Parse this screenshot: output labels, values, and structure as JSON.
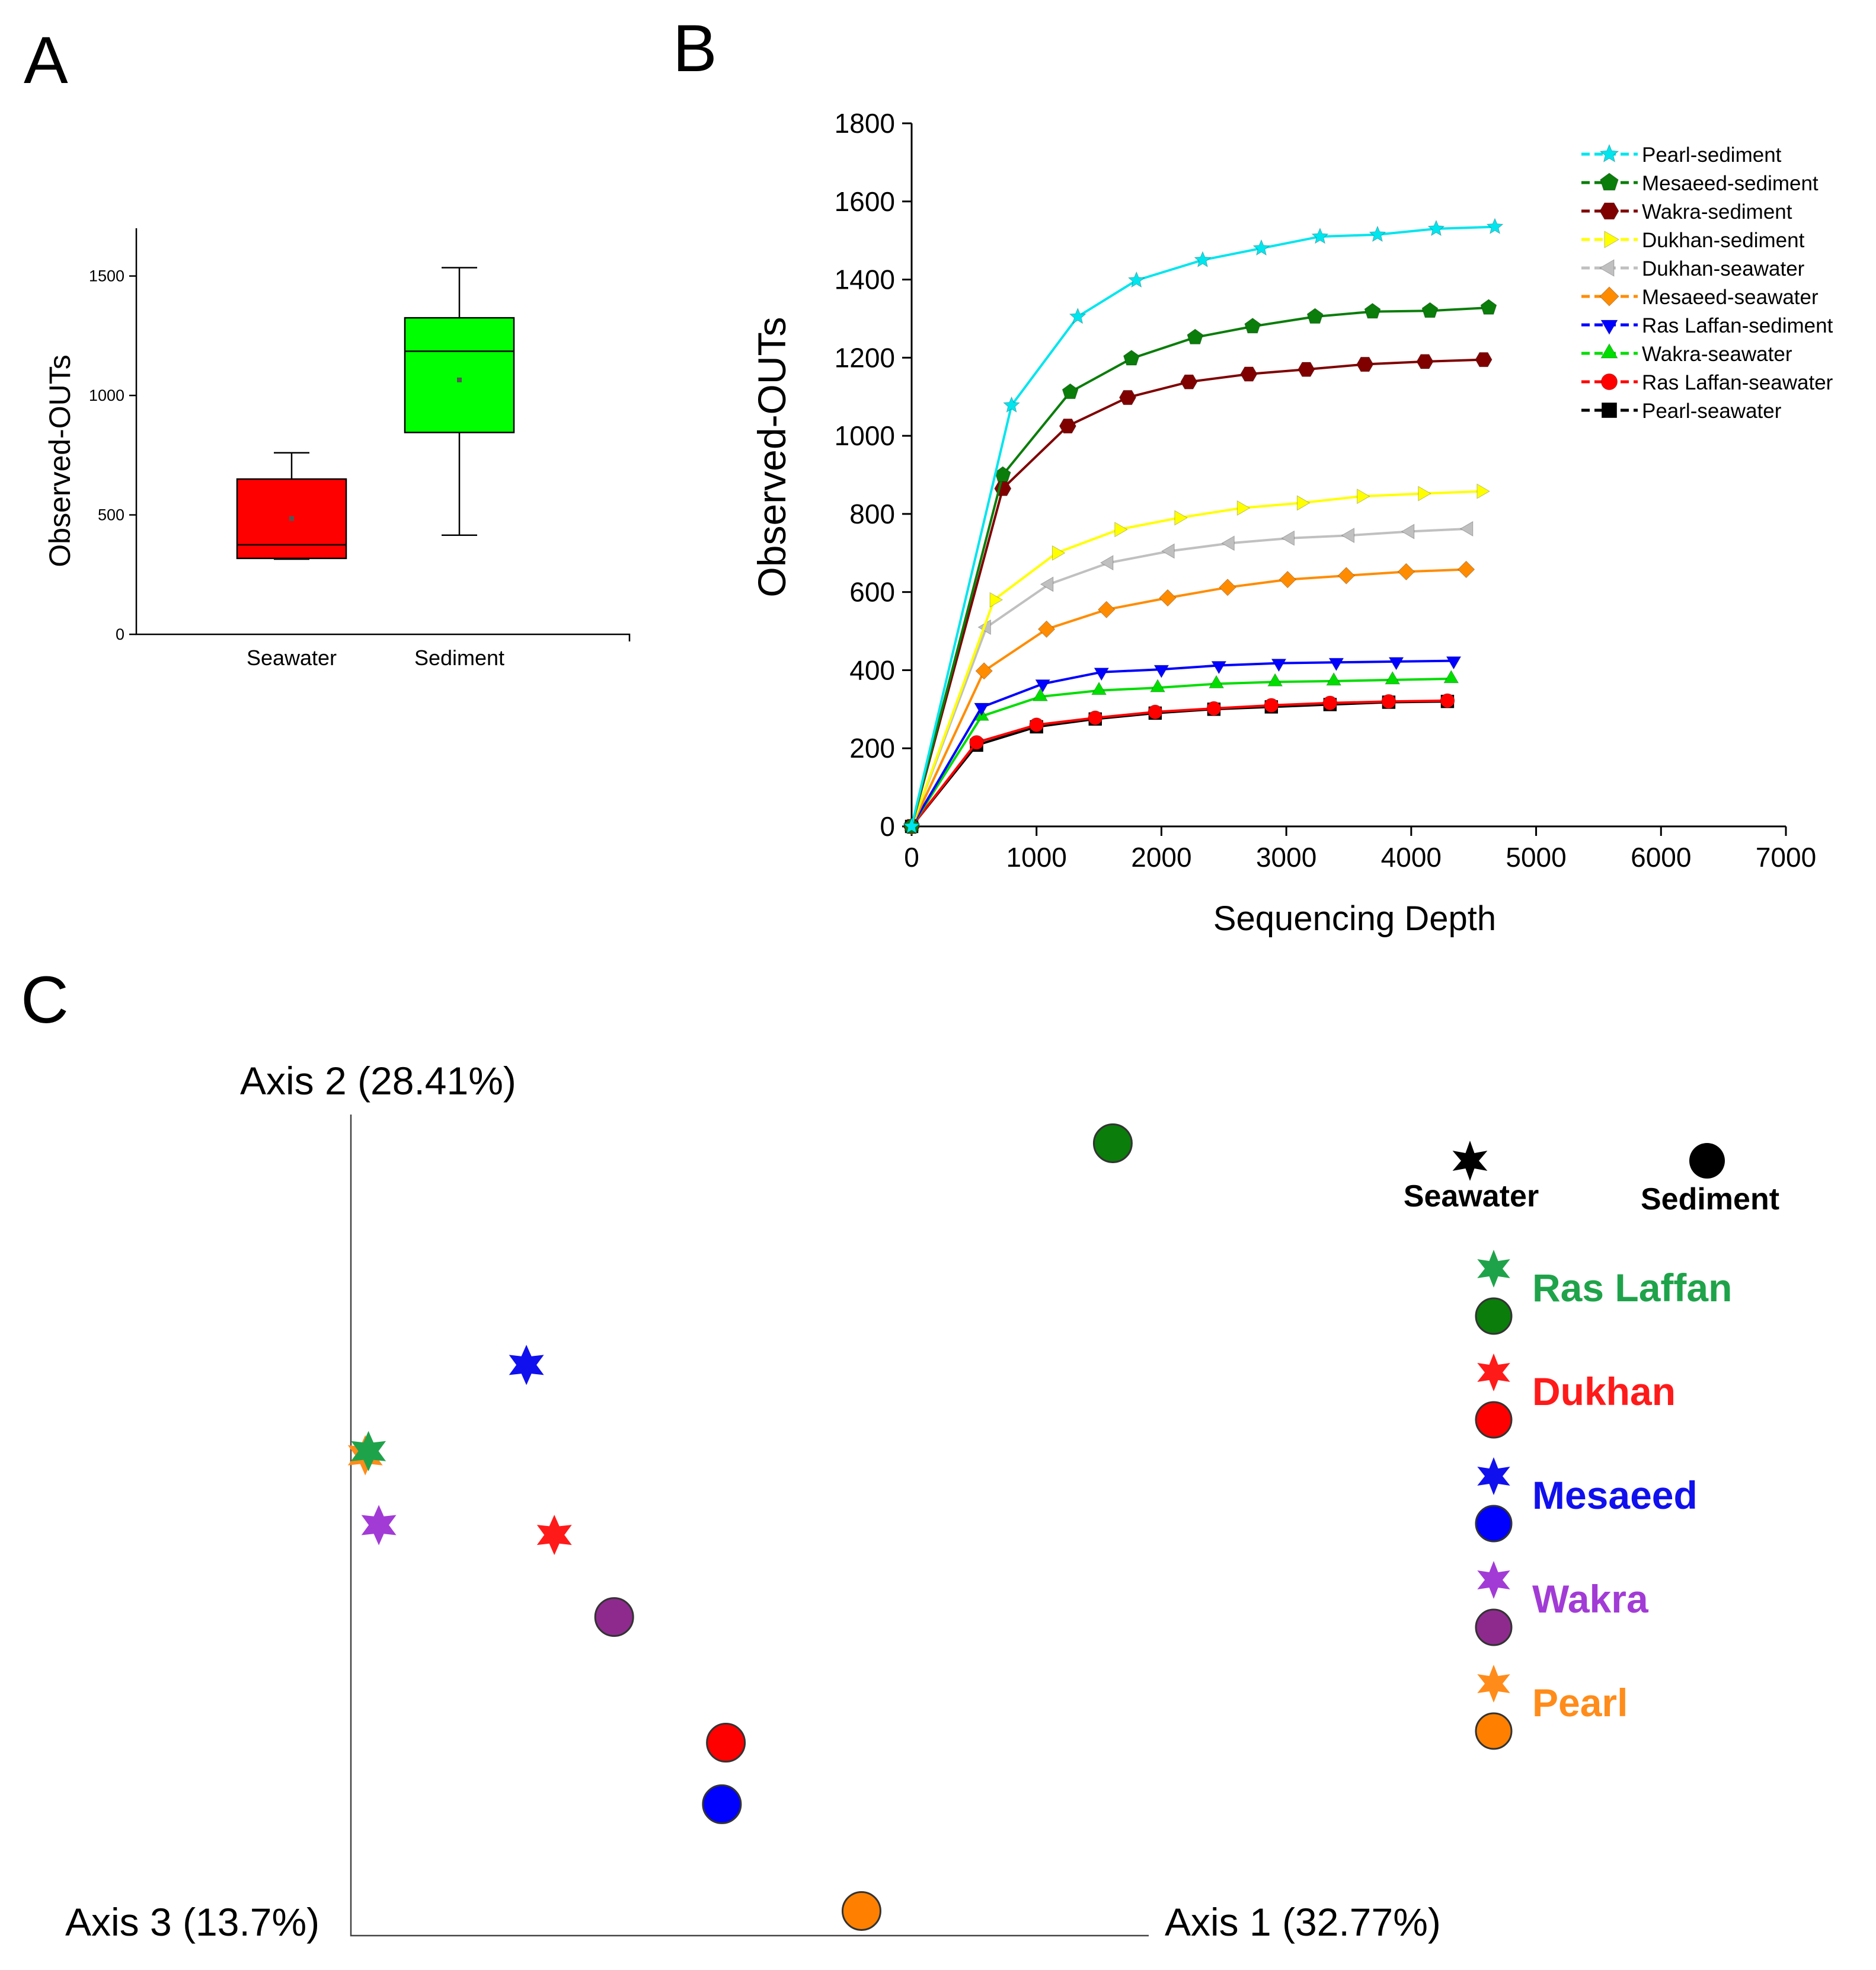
{
  "panels": {
    "a": "A",
    "b": "B",
    "c": "C"
  },
  "colors": {
    "seawater_box": "#ff0000",
    "sediment_box": "#00ff00"
  },
  "chart_data": [
    {
      "id": "A",
      "type": "box",
      "title": "",
      "xlabel": "",
      "ylabel": "Observed-OUTs",
      "ylim": [
        0,
        1700
      ],
      "yticks": [
        0,
        500,
        1000,
        1500
      ],
      "categories": [
        "Seawater",
        "Sediment"
      ],
      "boxes": [
        {
          "name": "Seawater",
          "min": 315,
          "q1": 318,
          "median": 375,
          "q3": 650,
          "max": 760,
          "mean": 485,
          "color": "#ff0000"
        },
        {
          "name": "Sediment",
          "min": 415,
          "q1": 845,
          "median": 1185,
          "q3": 1325,
          "max": 1535,
          "mean": 1065,
          "color": "#00ff00"
        }
      ]
    },
    {
      "id": "B",
      "type": "line",
      "title": "",
      "xlabel": "Sequencing Depth",
      "ylabel": "Observed-OUTs",
      "xlim": [
        0,
        7000
      ],
      "ylim": [
        0,
        1800
      ],
      "xticks": [
        0,
        1000,
        2000,
        3000,
        4000,
        5000,
        6000,
        7000
      ],
      "yticks": [
        0,
        200,
        400,
        600,
        800,
        1000,
        1200,
        1400,
        1600,
        1800
      ],
      "legend_position": "top-right",
      "series": [
        {
          "name": "Pearl-sediment",
          "color": "#00e5ee",
          "marker": "star",
          "x": [
            0,
            800,
            1330,
            1800,
            2330,
            2800,
            3270,
            3730,
            4200,
            4670
          ],
          "y": [
            0,
            1078,
            1305,
            1398,
            1450,
            1480,
            1510,
            1515,
            1530,
            1535
          ]
        },
        {
          "name": "Mesaeed-sediment",
          "color": "#0a7d0a",
          "marker": "pentagon",
          "x": [
            0,
            730,
            1270,
            1760,
            2270,
            2730,
            3230,
            3690,
            4150,
            4620
          ],
          "y": [
            0,
            900,
            1112,
            1198,
            1252,
            1280,
            1305,
            1318,
            1320,
            1328
          ]
        },
        {
          "name": "Wakra-sediment",
          "color": "#800000",
          "marker": "hexagon",
          "x": [
            0,
            730,
            1250,
            1730,
            2220,
            2700,
            3160,
            3630,
            4110,
            4580
          ],
          "y": [
            0,
            865,
            1025,
            1098,
            1138,
            1158,
            1170,
            1183,
            1190,
            1195
          ]
        },
        {
          "name": "Dukhan-sediment",
          "color": "#ffff00",
          "marker": "triangle-right",
          "x": [
            0,
            660,
            1160,
            1660,
            2140,
            2640,
            3120,
            3600,
            4090,
            4560
          ],
          "y": [
            0,
            580,
            700,
            760,
            790,
            815,
            828,
            845,
            852,
            858
          ]
        },
        {
          "name": "Dukhan-seawater",
          "color": "#c0c0c0",
          "marker": "triangle-left",
          "x": [
            0,
            600,
            1100,
            1580,
            2070,
            2550,
            3030,
            3510,
            3990,
            4460
          ],
          "y": [
            0,
            510,
            620,
            675,
            705,
            725,
            738,
            745,
            755,
            762
          ]
        },
        {
          "name": "Mesaeed-seawater",
          "color": "#ff8c00",
          "marker": "diamond",
          "x": [
            0,
            580,
            1080,
            1560,
            2050,
            2530,
            3010,
            3480,
            3960,
            4440
          ],
          "y": [
            0,
            398,
            505,
            555,
            585,
            612,
            632,
            642,
            652,
            658
          ]
        },
        {
          "name": "Ras Laffan-sediment",
          "color": "#0000ff",
          "marker": "triangle-down",
          "x": [
            0,
            560,
            1050,
            1520,
            2000,
            2460,
            2940,
            3400,
            3880,
            4340
          ],
          "y": [
            0,
            305,
            365,
            395,
            402,
            412,
            418,
            420,
            422,
            424
          ]
        },
        {
          "name": "Wakra-seawater",
          "color": "#00dd00",
          "marker": "triangle-up",
          "x": [
            0,
            560,
            1030,
            1500,
            1970,
            2440,
            2910,
            3380,
            3850,
            4320
          ],
          "y": [
            0,
            282,
            332,
            348,
            355,
            365,
            370,
            372,
            375,
            378
          ]
        },
        {
          "name": "Ras Laffan-seawater",
          "color": "#ff0000",
          "marker": "circle",
          "x": [
            0,
            520,
            1000,
            1470,
            1950,
            2420,
            2880,
            3350,
            3820,
            4290
          ],
          "y": [
            0,
            215,
            260,
            278,
            293,
            302,
            310,
            316,
            320,
            322
          ]
        },
        {
          "name": "Pearl-seawater",
          "color": "#000000",
          "marker": "square",
          "x": [
            0,
            520,
            1000,
            1470,
            1950,
            2420,
            2880,
            3350,
            3820,
            4290
          ],
          "y": [
            0,
            208,
            255,
            275,
            290,
            300,
            306,
            312,
            318,
            320
          ]
        }
      ]
    },
    {
      "id": "C",
      "type": "scatter",
      "title": "",
      "axis_labels": {
        "axis1": "Axis 1 (32.77%)",
        "axis2": "Axis 2 (28.41%)",
        "axis3": "Axis 3 (13.7%)"
      },
      "xlim": [
        0,
        1
      ],
      "ylim": [
        0,
        1
      ],
      "marker_legend": [
        {
          "label": "Seawater",
          "marker": "star"
        },
        {
          "label": "Sediment",
          "marker": "circle"
        }
      ],
      "sites": [
        {
          "name": "Ras Laffan",
          "color": "#1fa34a",
          "sediment_fill": "#0a7d0a"
        },
        {
          "name": "Dukhan",
          "color": "#ff1a1a",
          "sediment_fill": "#ff0000"
        },
        {
          "name": "Mesaeed",
          "color": "#1010ee",
          "sediment_fill": "#0000ff"
        },
        {
          "name": "Wakra",
          "color": "#a23bd6",
          "sediment_fill": "#8e2a8e"
        },
        {
          "name": "Pearl",
          "color": "#ff8c1a",
          "sediment_fill": "#ff8000"
        }
      ],
      "points": [
        {
          "site": "Ras Laffan",
          "type": "sediment",
          "x": 0.955,
          "y": 0.965
        },
        {
          "site": "Mesaeed",
          "type": "seawater",
          "x": 0.22,
          "y": 0.695
        },
        {
          "site": "Pearl",
          "type": "seawater",
          "x": 0.018,
          "y": 0.585
        },
        {
          "site": "Ras Laffan",
          "type": "seawater",
          "x": 0.022,
          "y": 0.59
        },
        {
          "site": "Wakra",
          "type": "seawater",
          "x": 0.035,
          "y": 0.5
        },
        {
          "site": "Dukhan",
          "type": "seawater",
          "x": 0.255,
          "y": 0.488
        },
        {
          "site": "Wakra",
          "type": "sediment",
          "x": 0.33,
          "y": 0.388
        },
        {
          "site": "Dukhan",
          "type": "sediment",
          "x": 0.47,
          "y": 0.235
        },
        {
          "site": "Mesaeed",
          "type": "sediment",
          "x": 0.465,
          "y": 0.16
        },
        {
          "site": "Pearl",
          "type": "sediment",
          "x": 0.64,
          "y": 0.03
        }
      ]
    }
  ]
}
